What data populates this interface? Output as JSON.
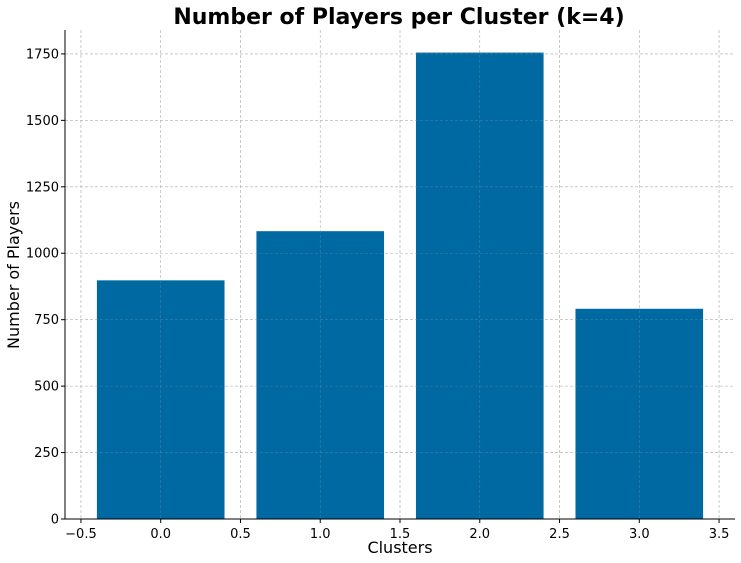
{
  "chart_data": {
    "type": "bar",
    "title": "Number of Players per Cluster (k=4)",
    "xlabel": "Clusters",
    "ylabel": "Number of Players",
    "categories": [
      0,
      1,
      2,
      3
    ],
    "values": [
      898,
      1083,
      1755,
      791
    ],
    "bar_width": 0.8,
    "bar_color": "#0069A1",
    "xlim": [
      -0.6,
      3.6
    ],
    "ylim": [
      0,
      1840
    ],
    "xticks": [
      -0.5,
      0.0,
      0.5,
      1.0,
      1.5,
      2.0,
      2.5,
      3.0,
      3.5
    ],
    "xtick_labels": [
      "−0.5",
      "0.0",
      "0.5",
      "1.0",
      "1.5",
      "2.0",
      "2.5",
      "3.0",
      "3.5"
    ],
    "yticks": [
      0,
      250,
      500,
      750,
      1000,
      1250,
      1500,
      1750
    ],
    "ytick_labels": [
      "0",
      "250",
      "500",
      "750",
      "1000",
      "1250",
      "1500",
      "1750"
    ],
    "grid": true
  }
}
